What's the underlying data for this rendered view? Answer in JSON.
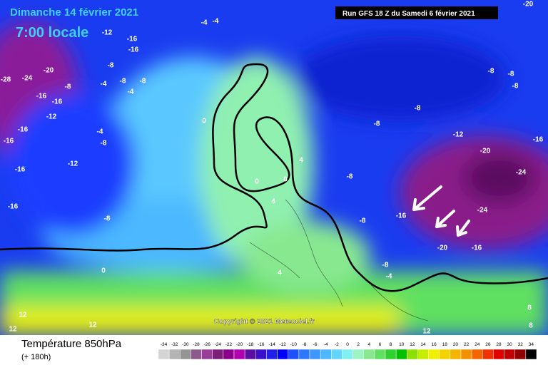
{
  "header": {
    "date": "Dimanche 14 février 2021",
    "time": "7:00 locale",
    "run": "Run GFS 18 Z du Samedi 6 février 2021"
  },
  "copyright": "Copyright © 2021 Meteociel.fr",
  "footer": {
    "title": "Température 850hPa",
    "subtitle": "(+ 180h)"
  },
  "colorbar": {
    "ticks": [
      -34,
      -32,
      -30,
      -28,
      -26,
      -24,
      -22,
      -20,
      -18,
      -16,
      -14,
      -12,
      -10,
      -8,
      -6,
      -4,
      -2,
      0,
      2,
      4,
      6,
      8,
      10,
      12,
      14,
      16,
      18,
      20,
      22,
      24,
      26,
      28,
      30,
      32,
      34
    ],
    "colors": [
      "#d4d4d4",
      "#b4b4b4",
      "#949494",
      "#8c5a8c",
      "#9a3c9a",
      "#7a1e7a",
      "#8c008c",
      "#b000b0",
      "#5a0fa0",
      "#3a10c8",
      "#2020e6",
      "#0000ff",
      "#1e50ff",
      "#2e78ff",
      "#3c98ff",
      "#4cb8ff",
      "#62d4ff",
      "#80f0f0",
      "#9cf4c4",
      "#88e890",
      "#60e060",
      "#30d030",
      "#00c000",
      "#8ce000",
      "#c4f000",
      "#f0f000",
      "#f4d200",
      "#f4b400",
      "#f49000",
      "#f46400",
      "#f03200",
      "#e00000",
      "#c00000",
      "#900000",
      "#000000"
    ]
  },
  "map_labels": [
    "-12",
    "-16",
    "-16",
    "-8",
    "-4",
    "-4",
    "-20",
    "-24",
    "-28",
    "-16",
    "-8",
    "-16",
    "-12",
    "-16",
    "-16",
    "-4",
    "-8",
    "-16",
    "-12",
    "-16",
    "-8",
    "-4",
    "-8",
    "-8",
    "-4",
    "0",
    "0",
    "0",
    "4",
    "4",
    "0",
    "4",
    "-8",
    "-8",
    "-16",
    "-20",
    "-16",
    "-24",
    "-24",
    "-20",
    "-16",
    "-12",
    "-8",
    "-8",
    "-8",
    "-8",
    "-8",
    "-20",
    "-8",
    "-4",
    "12",
    "12",
    "12",
    "12",
    "8",
    "8"
  ]
}
